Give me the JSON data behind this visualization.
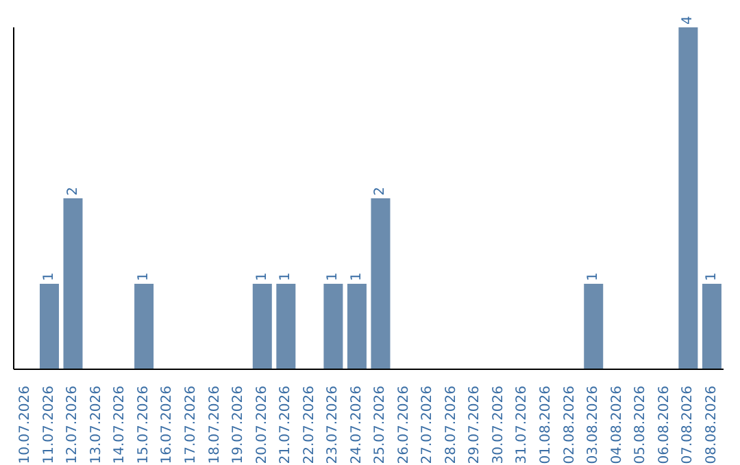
{
  "chart_data": {
    "type": "bar",
    "categories": [
      "10.07.2026",
      "11.07.2026",
      "12.07.2026",
      "13.07.2026",
      "14.07.2026",
      "15.07.2026",
      "16.07.2026",
      "17.07.2026",
      "18.07.2026",
      "19.07.2026",
      "20.07.2026",
      "21.07.2026",
      "22.07.2026",
      "23.07.2026",
      "24.07.2026",
      "25.07.2026",
      "26.07.2026",
      "27.07.2026",
      "28.07.2026",
      "29.07.2026",
      "30.07.2026",
      "31.07.2026",
      "01.08.2026",
      "02.08.2026",
      "03.08.2026",
      "04.08.2026",
      "05.08.2026",
      "06.08.2026",
      "07.08.2026",
      "08.08.2026"
    ],
    "values": [
      0,
      1,
      2,
      0,
      0,
      1,
      0,
      0,
      0,
      0,
      1,
      1,
      0,
      1,
      1,
      2,
      0,
      0,
      0,
      0,
      0,
      0,
      0,
      0,
      1,
      0,
      0,
      0,
      4,
      1
    ],
    "value_labels": [
      null,
      "1",
      "2",
      null,
      null,
      "1",
      null,
      null,
      null,
      null,
      "1",
      "1",
      null,
      "1",
      "1",
      "2",
      null,
      null,
      null,
      null,
      null,
      null,
      null,
      null,
      "1",
      null,
      null,
      null,
      "4",
      "1"
    ],
    "color": "#6b8cae",
    "tick_labels": "x"
  }
}
